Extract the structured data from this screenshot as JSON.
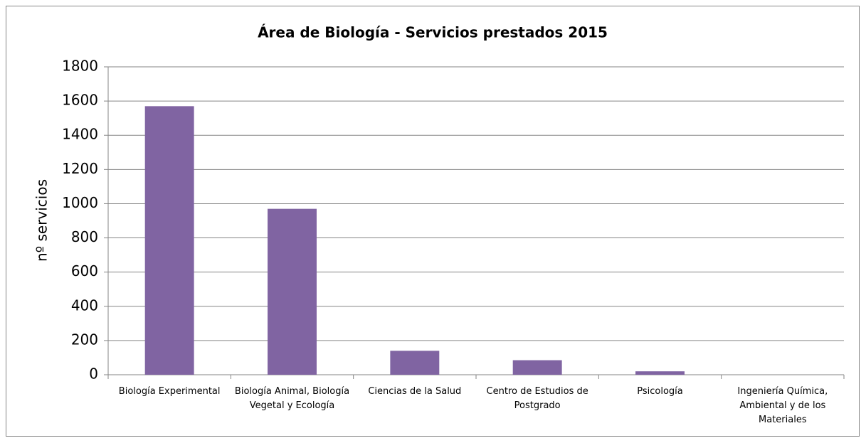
{
  "chart_data": {
    "type": "bar",
    "title": "Área de Biología - Servicios prestados 2015",
    "y_label": "nº servicios",
    "categories": [
      "Biología Experimental",
      "Biología Animal, Biología Vegetal y Ecología",
      "Ciencias de la Salud",
      "Centro de Estudios de Postgrado",
      "Psicología",
      "Ingeniería Química, Ambiental y de los Materiales"
    ],
    "values": [
      1570,
      970,
      140,
      85,
      20,
      0
    ],
    "color": "#8064a2",
    "ylim": [
      0,
      1800
    ],
    "yticks": [
      0,
      200,
      400,
      600,
      800,
      1000,
      1200,
      1400,
      1600,
      1800
    ],
    "grid": true
  }
}
